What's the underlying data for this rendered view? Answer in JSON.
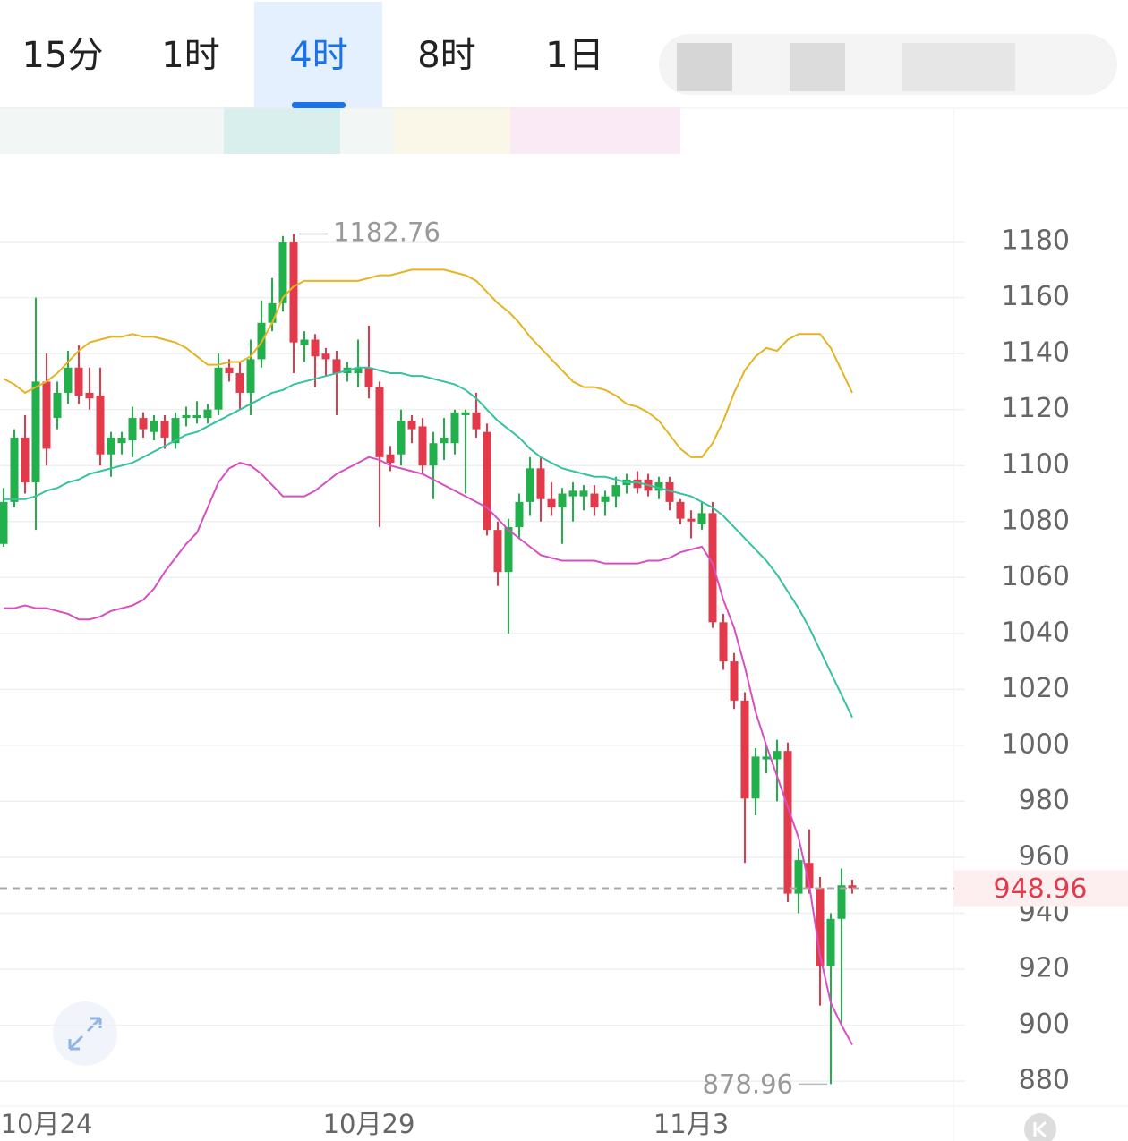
{
  "chart_data": {
    "type": "candlestick",
    "tabs": [
      {
        "label": "15分",
        "selected": false
      },
      {
        "label": "1时",
        "selected": false
      },
      {
        "label": "4时",
        "selected": true
      },
      {
        "label": "8时",
        "selected": false
      },
      {
        "label": "1日",
        "selected": false
      }
    ],
    "categories": [
      null,
      null,
      null,
      null,
      "10月24",
      null,
      null,
      null,
      null,
      null,
      null,
      null,
      null,
      null,
      null,
      null,
      null,
      null,
      null,
      null,
      null,
      null,
      null,
      null,
      null,
      null,
      null,
      null,
      null,
      null,
      null,
      null,
      null,
      null,
      "10月29",
      null,
      null,
      null,
      null,
      null,
      null,
      null,
      null,
      null,
      null,
      null,
      null,
      null,
      null,
      null,
      null,
      null,
      null,
      null,
      null,
      null,
      null,
      null,
      null,
      null,
      null,
      null,
      null,
      null,
      "11月3",
      null,
      null,
      null,
      null,
      null,
      null,
      null,
      null,
      null,
      null,
      null,
      null,
      null,
      null,
      null
    ],
    "ohlc": [
      [
        1072,
        1092,
        1071,
        1087
      ],
      [
        1087,
        1113,
        1085,
        1110
      ],
      [
        1110,
        1118,
        1090,
        1094
      ],
      [
        1094,
        1160,
        1077,
        1130
      ],
      [
        1130,
        1140,
        1100,
        1106
      ],
      [
        1117,
        1130,
        1113,
        1126
      ],
      [
        1126,
        1141,
        1122,
        1135
      ],
      [
        1135,
        1143,
        1122,
        1125
      ],
      [
        1126,
        1135,
        1120,
        1124
      ],
      [
        1125,
        1135,
        1100,
        1104
      ],
      [
        1104,
        1112,
        1096,
        1110
      ],
      [
        1108,
        1112,
        1104,
        1110
      ],
      [
        1109,
        1121,
        1103,
        1117
      ],
      [
        1117,
        1119,
        1110,
        1113
      ],
      [
        1112,
        1118,
        1109,
        1116
      ],
      [
        1116,
        1118,
        1106,
        1110
      ],
      [
        1108,
        1119,
        1106,
        1117
      ],
      [
        1117,
        1121,
        1114,
        1118
      ],
      [
        1117,
        1123,
        1115,
        1118
      ],
      [
        1117,
        1122,
        1115,
        1120
      ],
      [
        1120,
        1140,
        1118,
        1135
      ],
      [
        1135,
        1138,
        1130,
        1133
      ],
      [
        1133,
        1137,
        1120,
        1126
      ],
      [
        1126,
        1145,
        1118,
        1138
      ],
      [
        1138,
        1159,
        1135,
        1151
      ],
      [
        1151,
        1167,
        1148,
        1158
      ],
      [
        1158,
        1182,
        1155,
        1180
      ],
      [
        1180,
        1182.76,
        1133,
        1144
      ],
      [
        1143,
        1148,
        1137,
        1145
      ],
      [
        1145,
        1147,
        1128,
        1139
      ],
      [
        1140,
        1142,
        1132,
        1138
      ],
      [
        1138,
        1141,
        1118,
        1133
      ],
      [
        1133,
        1137,
        1130,
        1135
      ],
      [
        1133,
        1145,
        1128,
        1135
      ],
      [
        1135,
        1150,
        1124,
        1128
      ],
      [
        1128,
        1130,
        1078,
        1103
      ],
      [
        1104,
        1107,
        1098,
        1101
      ],
      [
        1104,
        1120,
        1100,
        1116
      ],
      [
        1116,
        1118,
        1108,
        1113
      ],
      [
        1114,
        1117,
        1097,
        1100
      ],
      [
        1100,
        1112,
        1088,
        1108
      ],
      [
        1108,
        1117,
        1102,
        1110
      ],
      [
        1108,
        1120,
        1104,
        1119
      ],
      [
        1118,
        1120,
        1090,
        1119
      ],
      [
        1119,
        1126,
        1110,
        1113
      ],
      [
        1112,
        1115,
        1075,
        1077
      ],
      [
        1077,
        1080,
        1057,
        1062
      ],
      [
        1062,
        1081,
        1040,
        1078
      ],
      [
        1078,
        1090,
        1074,
        1087
      ],
      [
        1087,
        1103,
        1082,
        1099
      ],
      [
        1099,
        1103,
        1080,
        1088
      ],
      [
        1088,
        1094,
        1082,
        1085
      ],
      [
        1085,
        1092,
        1072,
        1090
      ],
      [
        1089,
        1094,
        1080,
        1091
      ],
      [
        1089,
        1093,
        1084,
        1091
      ],
      [
        1090,
        1093,
        1082,
        1085
      ],
      [
        1087,
        1091,
        1082,
        1089
      ],
      [
        1089,
        1096,
        1085,
        1093
      ],
      [
        1093,
        1097,
        1090,
        1095
      ],
      [
        1095,
        1098,
        1090,
        1092
      ],
      [
        1095,
        1097,
        1089,
        1091
      ],
      [
        1091,
        1096,
        1088,
        1094
      ],
      [
        1094,
        1096,
        1084,
        1087
      ],
      [
        1087,
        1088,
        1079,
        1081
      ],
      [
        1081,
        1084,
        1074,
        1080
      ],
      [
        1079,
        1087,
        1077,
        1083
      ],
      [
        1083,
        1087,
        1042,
        1044
      ],
      [
        1044,
        1047,
        1027,
        1030
      ],
      [
        1030,
        1033,
        1013,
        1016
      ],
      [
        1016,
        1019,
        958,
        981
      ],
      [
        981,
        999,
        975,
        996
      ],
      [
        995,
        1000,
        990,
        996
      ],
      [
        995,
        1002,
        980,
        998
      ],
      [
        998,
        1001,
        944,
        947
      ],
      [
        947,
        963,
        940,
        959
      ],
      [
        958,
        970,
        947,
        949
      ],
      [
        949,
        953,
        907,
        921
      ],
      [
        921,
        940,
        878.96,
        938
      ],
      [
        938,
        956,
        901,
        950
      ],
      [
        950,
        952,
        947,
        948.96
      ]
    ],
    "up_color": "#21b04b",
    "down_color": "#e23a4a",
    "lines": [
      {
        "color": "#e6b422",
        "values": [
          1131,
          1129,
          1126,
          1128,
          1130,
          1133,
          1137,
          1141,
          1144,
          1145,
          1146,
          1146,
          1147,
          1146,
          1146,
          1145,
          1144,
          1142,
          1139,
          1136,
          1136,
          1137,
          1137,
          1139,
          1144,
          1151,
          1160,
          1164,
          1166,
          1166,
          1166,
          1166,
          1166,
          1166,
          1167,
          1168,
          1168,
          1169,
          1170,
          1170,
          1170,
          1170,
          1169,
          1168,
          1166,
          1162,
          1158,
          1155,
          1151,
          1146,
          1142,
          1138,
          1134,
          1130,
          1128,
          1128,
          1127,
          1125,
          1122,
          1121,
          1119,
          1116,
          1111,
          1106,
          1103,
          1103,
          1108,
          1116,
          1126,
          1134,
          1139,
          1142,
          1141,
          1145,
          1147,
          1147,
          1147,
          1142,
          1134,
          1126
        ]
      },
      {
        "color": "#36c2a0",
        "values": [
          1088,
          1088,
          1088,
          1089,
          1091,
          1092,
          1094,
          1095,
          1097,
          1098,
          1099,
          1100,
          1101,
          1103,
          1105,
          1107,
          1109,
          1111,
          1112,
          1114,
          1116,
          1118,
          1120,
          1122,
          1124,
          1126,
          1127,
          1129,
          1130,
          1131,
          1132,
          1133,
          1134,
          1135,
          1135,
          1134,
          1133,
          1133,
          1132,
          1132,
          1131,
          1130,
          1129,
          1127,
          1124,
          1120,
          1116,
          1113,
          1110,
          1106,
          1103,
          1101,
          1099,
          1098,
          1097,
          1096,
          1096,
          1095,
          1094,
          1094,
          1093,
          1092,
          1091,
          1090,
          1089,
          1087,
          1085,
          1082,
          1078,
          1074,
          1070,
          1066,
          1061,
          1055,
          1049,
          1042,
          1034,
          1026,
          1018,
          1010
        ]
      },
      {
        "color": "#d84fc0",
        "values": [
          1049,
          1049,
          1050,
          1049,
          1049,
          1048,
          1047,
          1045,
          1045,
          1046,
          1048,
          1049,
          1050,
          1052,
          1056,
          1062,
          1067,
          1072,
          1076,
          1085,
          1094,
          1099,
          1101,
          1100,
          1097,
          1093,
          1089,
          1089,
          1089,
          1091,
          1094,
          1097,
          1099,
          1101,
          1103,
          1102,
          1100,
          1099,
          1098,
          1097,
          1095,
          1093,
          1091,
          1089,
          1087,
          1085,
          1081,
          1077,
          1074,
          1071,
          1068,
          1067,
          1066,
          1066,
          1066,
          1066,
          1065,
          1065,
          1065,
          1065,
          1066,
          1066,
          1067,
          1069,
          1070,
          1071,
          1065,
          1052,
          1042,
          1028,
          1012,
          1000,
          989,
          978,
          967,
          950,
          925,
          908,
          900,
          893
        ]
      }
    ],
    "ylim": [
      871.4,
      1226.4
    ],
    "yticks": [
      880,
      900,
      920,
      940,
      960,
      980,
      1000,
      1020,
      1040,
      1060,
      1080,
      1100,
      1120,
      1140,
      1160,
      1180
    ],
    "grid": true,
    "max_label": 1182.76,
    "min_label": 878.96,
    "last_price": 948.96
  }
}
